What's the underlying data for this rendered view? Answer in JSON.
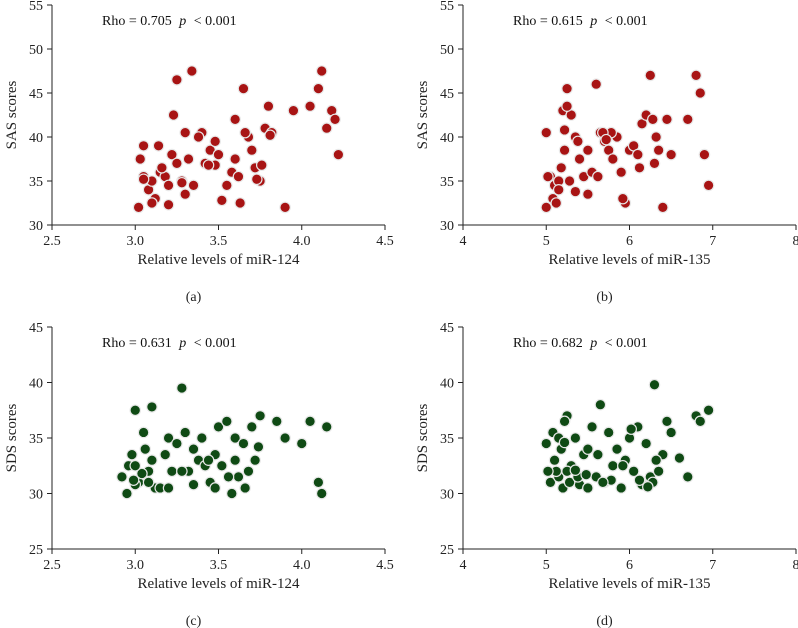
{
  "colors": {
    "sas_points": "#a81414",
    "sds_points": "#0f4a14",
    "axis": "#222222"
  },
  "chart_data": [
    {
      "type": "scatter",
      "panel_label": "(a)",
      "annotation": {
        "rho_label": "Rho = 0.705",
        "p_symbol": "p",
        "p_value": "< 0.001"
      },
      "xlabel": "Relative levels of miR-124",
      "ylabel": "SAS scores",
      "xlim": [
        2.5,
        4.5
      ],
      "ylim": [
        30,
        55
      ],
      "xticks": [
        "2.5",
        "3.0",
        "3.5",
        "4.0",
        "4.5"
      ],
      "yticks": [
        "30",
        "35",
        "40",
        "45",
        "50",
        "55"
      ],
      "grid": false,
      "x": [
        3.02,
        3.05,
        3.03,
        3.08,
        3.1,
        3.12,
        3.15,
        3.05,
        3.18,
        3.2,
        3.14,
        3.22,
        3.1,
        3.25,
        3.28,
        3.3,
        3.16,
        3.32,
        3.05,
        3.2,
        3.25,
        3.3,
        3.35,
        3.4,
        3.38,
        3.45,
        3.48,
        3.5,
        3.42,
        3.52,
        3.55,
        3.58,
        3.6,
        3.62,
        3.65,
        3.68,
        3.7,
        3.72,
        3.75,
        3.78,
        3.8,
        3.82,
        3.63,
        3.66,
        3.73,
        3.9,
        3.95,
        4.05,
        4.1,
        4.12,
        4.15,
        4.18,
        4.2,
        4.22,
        3.23,
        3.34,
        3.48,
        3.6,
        3.76,
        3.81,
        3.44,
        3.28
      ],
      "y": [
        32.0,
        35.5,
        37.5,
        34.0,
        35.0,
        33.0,
        36.0,
        39.0,
        35.5,
        34.5,
        39.0,
        38.0,
        32.5,
        37.0,
        35.0,
        33.5,
        36.5,
        37.5,
        35.2,
        32.3,
        46.5,
        40.5,
        34.5,
        40.5,
        40.0,
        38.5,
        39.5,
        38.0,
        37.0,
        32.8,
        34.5,
        36.0,
        42.0,
        35.5,
        45.5,
        40.0,
        38.5,
        36.5,
        35.0,
        41.0,
        43.5,
        40.5,
        32.5,
        40.5,
        35.2,
        32.0,
        43.0,
        43.5,
        45.5,
        47.5,
        41.0,
        43.0,
        42.0,
        38.0,
        42.5,
        47.5,
        36.8,
        37.5,
        36.8,
        40.2,
        36.8,
        34.8
      ]
    },
    {
      "type": "scatter",
      "panel_label": "(b)",
      "annotation": {
        "rho_label": "Rho = 0.615",
        "p_symbol": "p",
        "p_value": "< 0.001"
      },
      "xlabel": "Relative levels of miR-135",
      "ylabel": "SAS scores",
      "xlim": [
        4,
        8
      ],
      "ylim": [
        30,
        55
      ],
      "xticks": [
        "4",
        "5",
        "6",
        "7",
        "8"
      ],
      "yticks": [
        "30",
        "35",
        "40",
        "45",
        "50",
        "55"
      ],
      "grid": false,
      "x": [
        5.0,
        5.05,
        5.1,
        5.0,
        5.08,
        5.15,
        5.2,
        5.25,
        5.3,
        5.35,
        5.12,
        5.18,
        5.22,
        5.28,
        5.4,
        5.45,
        5.5,
        5.55,
        5.6,
        5.65,
        5.7,
        5.75,
        5.8,
        5.85,
        5.9,
        5.95,
        6.0,
        6.05,
        6.1,
        6.15,
        6.2,
        6.25,
        6.3,
        6.35,
        6.4,
        6.5,
        6.7,
        6.8,
        6.85,
        6.9,
        6.95,
        5.25,
        5.38,
        5.62,
        5.78,
        6.28,
        6.45,
        5.02,
        5.15,
        5.5,
        5.68,
        5.92,
        6.12,
        6.32,
        5.22,
        5.35,
        5.72
      ],
      "y": [
        40.5,
        35.5,
        34.5,
        32.0,
        33.0,
        35.0,
        43.0,
        45.5,
        42.5,
        40.0,
        32.5,
        36.5,
        38.5,
        35.0,
        37.5,
        35.5,
        33.5,
        36.0,
        46.0,
        40.5,
        39.5,
        38.5,
        37.5,
        40.0,
        36.0,
        32.5,
        38.5,
        39.0,
        38.0,
        41.5,
        42.5,
        47.0,
        37.0,
        38.5,
        32.0,
        38.0,
        42.0,
        47.0,
        45.0,
        38.0,
        34.5,
        43.5,
        39.5,
        35.5,
        40.5,
        42.0,
        42.0,
        35.5,
        34.0,
        38.5,
        40.5,
        33.0,
        36.5,
        40.0,
        40.8,
        33.8,
        39.7
      ]
    },
    {
      "type": "scatter",
      "panel_label": "(c)",
      "annotation": {
        "rho_label": "Rho = 0.631",
        "p_symbol": "p",
        "p_value": "< 0.001"
      },
      "xlabel": "Relative levels of miR-124",
      "ylabel": "SDS scores",
      "xlim": [
        2.5,
        4.5
      ],
      "ylim": [
        25,
        45
      ],
      "xticks": [
        "2.5",
        "3.0",
        "3.5",
        "4.0",
        "4.5"
      ],
      "yticks": [
        "25",
        "30",
        "35",
        "40",
        "45"
      ],
      "grid": false,
      "x": [
        2.92,
        2.95,
        2.98,
        3.0,
        3.02,
        3.05,
        3.08,
        3.1,
        3.12,
        2.96,
        3.0,
        3.04,
        3.06,
        3.15,
        3.18,
        3.2,
        3.22,
        3.25,
        3.28,
        3.3,
        3.32,
        3.35,
        3.38,
        3.4,
        3.42,
        3.45,
        3.48,
        3.5,
        3.52,
        3.55,
        3.58,
        3.6,
        3.62,
        3.65,
        3.68,
        3.7,
        3.72,
        3.75,
        3.85,
        3.9,
        4.0,
        4.05,
        4.1,
        4.12,
        4.15,
        3.0,
        3.08,
        3.28,
        3.48,
        3.6,
        3.1,
        3.2,
        3.35,
        3.44,
        3.56,
        3.66,
        3.74,
        2.99
      ],
      "y": [
        31.5,
        30.0,
        33.5,
        37.5,
        31.0,
        35.5,
        32.0,
        37.8,
        30.5,
        32.5,
        30.8,
        31.8,
        34.0,
        30.5,
        33.5,
        35.0,
        32.0,
        34.5,
        39.5,
        35.5,
        32.0,
        30.8,
        33.0,
        35.0,
        32.5,
        31.0,
        33.5,
        36.0,
        32.5,
        36.5,
        30.0,
        35.0,
        31.5,
        34.5,
        32.0,
        36.0,
        33.0,
        37.0,
        36.5,
        35.0,
        34.5,
        36.5,
        31.0,
        30.0,
        36.0,
        32.5,
        31.0,
        32.0,
        30.5,
        33.0,
        33.0,
        30.5,
        34.0,
        33.0,
        31.5,
        30.5,
        34.2,
        31.2
      ]
    },
    {
      "type": "scatter",
      "panel_label": "(d)",
      "annotation": {
        "rho_label": "Rho = 0.682",
        "p_symbol": "p",
        "p_value": "< 0.001"
      },
      "xlabel": "Relative levels of miR-135",
      "ylabel": "SDS scores",
      "xlim": [
        4,
        8
      ],
      "ylim": [
        25,
        45
      ],
      "xticks": [
        "4",
        "5",
        "6",
        "7",
        "8"
      ],
      "yticks": [
        "25",
        "30",
        "35",
        "40",
        "45"
      ],
      "grid": false,
      "x": [
        5.0,
        5.05,
        5.1,
        5.08,
        5.15,
        5.2,
        5.25,
        5.3,
        5.35,
        5.4,
        5.12,
        5.18,
        5.22,
        5.28,
        5.45,
        5.5,
        5.55,
        5.6,
        5.65,
        5.7,
        5.75,
        5.8,
        5.85,
        5.9,
        5.95,
        6.0,
        6.05,
        6.1,
        6.15,
        6.2,
        6.25,
        6.3,
        6.35,
        6.4,
        6.45,
        6.5,
        6.7,
        6.8,
        6.85,
        6.95,
        5.25,
        5.38,
        5.62,
        5.78,
        6.28,
        5.02,
        5.15,
        5.5,
        5.68,
        5.92,
        6.12,
        6.32,
        5.22,
        5.35,
        6.02,
        6.22,
        6.6,
        5.48
      ],
      "y": [
        34.5,
        31.0,
        33.0,
        35.5,
        31.5,
        30.5,
        37.0,
        32.5,
        35.0,
        30.8,
        32.0,
        34.0,
        36.5,
        31.0,
        33.5,
        30.5,
        36.0,
        31.5,
        38.0,
        31.0,
        35.5,
        32.5,
        34.0,
        30.5,
        33.0,
        35.0,
        32.0,
        36.0,
        30.8,
        34.5,
        31.5,
        39.8,
        32.0,
        33.5,
        36.5,
        35.5,
        31.5,
        37.0,
        36.5,
        37.5,
        32.0,
        31.5,
        33.5,
        31.2,
        31.0,
        32.0,
        35.0,
        34.0,
        31.0,
        32.5,
        31.2,
        33.0,
        34.6,
        32.1,
        35.8,
        30.6,
        33.2,
        31.7
      ]
    }
  ]
}
